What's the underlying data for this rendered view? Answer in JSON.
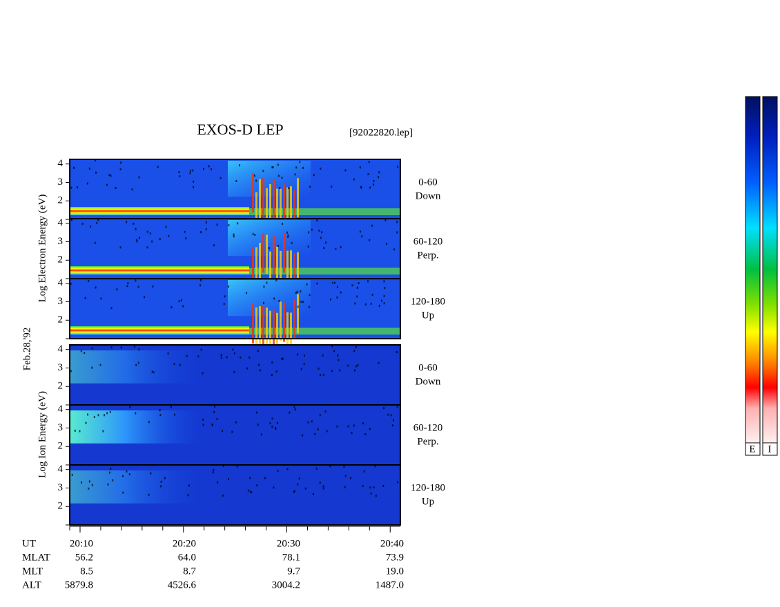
{
  "header": {
    "title": "EXOS-D LEP",
    "file": "[92022820.lep]"
  },
  "axis_labels": {
    "electron": "Log  Electron  Energy (eV)",
    "ion": "Log  Ion  Energy (eV)",
    "date": "Feb.28,'92"
  },
  "energy_ticks": [
    "4",
    "3",
    "2"
  ],
  "panels": [
    {
      "angle": "0-60",
      "direction": "Down"
    },
    {
      "angle": "60-120",
      "direction": "Perp."
    },
    {
      "angle": "120-180",
      "direction": "Up"
    },
    {
      "angle": "0-60",
      "direction": "Down"
    },
    {
      "angle": "60-120",
      "direction": "Perp."
    },
    {
      "angle": "120-180",
      "direction": "Up"
    }
  ],
  "orbit_table": {
    "rows": [
      {
        "label": "UT",
        "values": [
          "20:10",
          "20:20",
          "20:30",
          "20:40"
        ]
      },
      {
        "label": "MLAT",
        "values": [
          "56.2",
          "64.0",
          "78.1",
          "73.9"
        ]
      },
      {
        "label": "MLT",
        "values": [
          "8.5",
          "8.7",
          "9.7",
          "19.0"
        ]
      },
      {
        "label": "ALT",
        "values": [
          "5879.8",
          "4526.6",
          "3004.2",
          "1487.0"
        ]
      }
    ]
  },
  "colorbar": {
    "labels": [
      "E",
      "I"
    ]
  }
}
